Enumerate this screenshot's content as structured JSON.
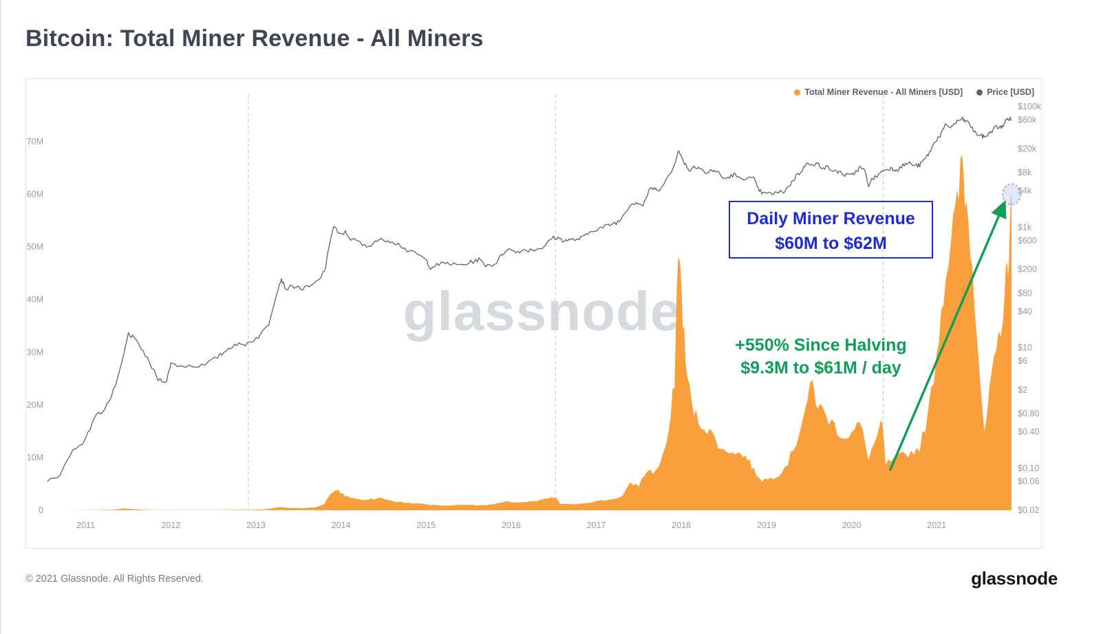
{
  "title": "Bitcoin: Total Miner Revenue - All Miners",
  "watermark": "glassnode",
  "legend": {
    "revenue": "Total Miner Revenue - All Miners [USD]",
    "price": "Price [USD]"
  },
  "annotations": {
    "blue": {
      "line1": "Daily Miner Revenue",
      "line2": "$60M to $62M"
    },
    "green": {
      "line1": "+550% Since Halving",
      "line2": "$9.3M to $61M / day"
    },
    "arrow": {
      "from_year": 2020.45,
      "from_value_m": 7.5,
      "to_year": 2021.8,
      "to_value_m": 58.5
    },
    "target_marker": {
      "year": 2021.88,
      "value_m": 60
    }
  },
  "footer": {
    "copyright": "© 2021 Glassnode. All Rights Reserved.",
    "logo": "glassnode"
  },
  "colors": {
    "orange": "#f9a03c",
    "price_gray": "#5d636b",
    "green": "#0e9f57",
    "blue": "#1d2bd6",
    "halving_line": "#c0c5cb",
    "axis_text": "#969ca5"
  },
  "chart_data": {
    "type": "area+line",
    "title": "Bitcoin: Total Miner Revenue - All Miners",
    "x_domain": [
      2010.55,
      2021.88
    ],
    "x_ticks": [
      2011,
      2012,
      2013,
      2014,
      2015,
      2016,
      2017,
      2018,
      2019,
      2020,
      2021
    ],
    "halving_lines": [
      2012.91,
      2016.52,
      2020.37
    ],
    "grid": "off",
    "legend_position": "top-right",
    "left_axis": {
      "label": "Total Miner Revenue - All Miners",
      "unit": "USD million per day",
      "scale": "linear",
      "max_m": 79,
      "ticks": [
        {
          "v": 0,
          "label": "0"
        },
        {
          "v": 10,
          "label": "10M"
        },
        {
          "v": 20,
          "label": "20M"
        },
        {
          "v": 30,
          "label": "30M"
        },
        {
          "v": 40,
          "label": "40M"
        },
        {
          "v": 50,
          "label": "50M"
        },
        {
          "v": 60,
          "label": "60M"
        },
        {
          "v": 70,
          "label": "70M"
        }
      ]
    },
    "right_axis": {
      "label": "Price",
      "unit": "USD",
      "scale": "log",
      "min": 0.02,
      "max": 161000,
      "ticks": [
        {
          "v": 100000,
          "label": "$100k"
        },
        {
          "v": 60000,
          "label": "$60k"
        },
        {
          "v": 20000,
          "label": "$20k"
        },
        {
          "v": 8000,
          "label": "$8k"
        },
        {
          "v": 4000,
          "label": "$4k"
        },
        {
          "v": 1000,
          "label": "$1k"
        },
        {
          "v": 600,
          "label": "$600"
        },
        {
          "v": 200,
          "label": "$200"
        },
        {
          "v": 80,
          "label": "$80"
        },
        {
          "v": 40,
          "label": "$40"
        },
        {
          "v": 10,
          "label": "$10"
        },
        {
          "v": 6,
          "label": "$6"
        },
        {
          "v": 2,
          "label": "$2"
        },
        {
          "v": 0.8,
          "label": "$0.80"
        },
        {
          "v": 0.4,
          "label": "$0.40"
        },
        {
          "v": 0.1,
          "label": "$0.10"
        },
        {
          "v": 0.06,
          "label": "$0.06"
        },
        {
          "v": 0.02,
          "label": "$0.02"
        }
      ]
    },
    "series": [
      {
        "name": "Total Miner Revenue - All Miners [USD]",
        "type": "area",
        "axis": "left",
        "color": "#f9a03c",
        "unit": "$M per day",
        "points": [
          [
            2010.55,
            0.003
          ],
          [
            2010.75,
            0.006
          ],
          [
            2011.0,
            0.02
          ],
          [
            2011.17,
            0.05
          ],
          [
            2011.33,
            0.1
          ],
          [
            2011.45,
            0.35
          ],
          [
            2011.55,
            0.2
          ],
          [
            2011.7,
            0.07
          ],
          [
            2011.9,
            0.03
          ],
          [
            2012.2,
            0.05
          ],
          [
            2012.5,
            0.05
          ],
          [
            2012.75,
            0.07
          ],
          [
            2012.91,
            0.08
          ],
          [
            2013.0,
            0.1
          ],
          [
            2013.1,
            0.18
          ],
          [
            2013.2,
            0.4
          ],
          [
            2013.28,
            0.6
          ],
          [
            2013.4,
            0.42
          ],
          [
            2013.55,
            0.38
          ],
          [
            2013.7,
            0.55
          ],
          [
            2013.8,
            1.2
          ],
          [
            2013.88,
            3.2
          ],
          [
            2013.95,
            4.0
          ],
          [
            2014.0,
            3.4
          ],
          [
            2014.05,
            2.6
          ],
          [
            2014.15,
            2.3
          ],
          [
            2014.25,
            1.9
          ],
          [
            2014.35,
            2.2
          ],
          [
            2014.45,
            2.3
          ],
          [
            2014.55,
            2.0
          ],
          [
            2014.65,
            1.6
          ],
          [
            2014.8,
            1.4
          ],
          [
            2014.95,
            1.2
          ],
          [
            2015.1,
            0.95
          ],
          [
            2015.3,
            0.9
          ],
          [
            2015.5,
            1.1
          ],
          [
            2015.65,
            0.9
          ],
          [
            2015.8,
            1.15
          ],
          [
            2015.95,
            1.6
          ],
          [
            2016.1,
            1.5
          ],
          [
            2016.3,
            1.7
          ],
          [
            2016.45,
            2.3
          ],
          [
            2016.52,
            2.4
          ],
          [
            2016.58,
            1.2
          ],
          [
            2016.7,
            1.1
          ],
          [
            2016.85,
            1.35
          ],
          [
            2017.0,
            1.7
          ],
          [
            2017.15,
            2.0
          ],
          [
            2017.3,
            2.6
          ],
          [
            2017.4,
            5.0
          ],
          [
            2017.5,
            4.8
          ],
          [
            2017.6,
            7.6
          ],
          [
            2017.7,
            7.2
          ],
          [
            2017.78,
            10.5
          ],
          [
            2017.85,
            14
          ],
          [
            2017.92,
            25
          ],
          [
            2017.96,
            50
          ],
          [
            2018.0,
            42
          ],
          [
            2018.05,
            28
          ],
          [
            2018.12,
            20
          ],
          [
            2018.2,
            17
          ],
          [
            2018.3,
            15.5
          ],
          [
            2018.4,
            13.5
          ],
          [
            2018.5,
            11
          ],
          [
            2018.6,
            11.5
          ],
          [
            2018.7,
            10.5
          ],
          [
            2018.78,
            10
          ],
          [
            2018.85,
            7.5
          ],
          [
            2018.95,
            5.8
          ],
          [
            2019.05,
            6
          ],
          [
            2019.15,
            7
          ],
          [
            2019.25,
            9
          ],
          [
            2019.35,
            13
          ],
          [
            2019.45,
            19
          ],
          [
            2019.54,
            24
          ],
          [
            2019.6,
            20
          ],
          [
            2019.7,
            18
          ],
          [
            2019.8,
            16
          ],
          [
            2019.9,
            14
          ],
          [
            2020.0,
            14.5
          ],
          [
            2020.1,
            16.5
          ],
          [
            2020.2,
            10
          ],
          [
            2020.3,
            14
          ],
          [
            2020.36,
            16.5
          ],
          [
            2020.4,
            8.8
          ],
          [
            2020.5,
            9.5
          ],
          [
            2020.6,
            10.5
          ],
          [
            2020.7,
            11
          ],
          [
            2020.8,
            12
          ],
          [
            2020.9,
            18
          ],
          [
            2021.0,
            30
          ],
          [
            2021.08,
            42
          ],
          [
            2021.17,
            52
          ],
          [
            2021.24,
            57
          ],
          [
            2021.3,
            67
          ],
          [
            2021.35,
            58
          ],
          [
            2021.42,
            48
          ],
          [
            2021.5,
            28
          ],
          [
            2021.56,
            14
          ],
          [
            2021.62,
            22
          ],
          [
            2021.7,
            30
          ],
          [
            2021.78,
            38
          ],
          [
            2021.83,
            46
          ],
          [
            2021.86,
            52
          ],
          [
            2021.88,
            60
          ]
        ]
      },
      {
        "name": "Price [USD]",
        "type": "line",
        "axis": "right",
        "color": "#5d636b",
        "unit": "USD",
        "points": [
          [
            2010.55,
            0.06
          ],
          [
            2010.7,
            0.08
          ],
          [
            2010.85,
            0.2
          ],
          [
            2011.0,
            0.3
          ],
          [
            2011.1,
            0.7
          ],
          [
            2011.2,
            0.9
          ],
          [
            2011.3,
            1.5
          ],
          [
            2011.4,
            4
          ],
          [
            2011.45,
            8
          ],
          [
            2011.5,
            17
          ],
          [
            2011.55,
            15
          ],
          [
            2011.65,
            10
          ],
          [
            2011.75,
            5.5
          ],
          [
            2011.85,
            3
          ],
          [
            2011.95,
            2.8
          ],
          [
            2012.0,
            5.5
          ],
          [
            2012.1,
            5
          ],
          [
            2012.25,
            5
          ],
          [
            2012.4,
            5.1
          ],
          [
            2012.55,
            7
          ],
          [
            2012.65,
            9
          ],
          [
            2012.75,
            11.5
          ],
          [
            2012.85,
            11
          ],
          [
            2012.95,
            13
          ],
          [
            2013.05,
            16
          ],
          [
            2013.15,
            25
          ],
          [
            2013.25,
            90
          ],
          [
            2013.3,
            140
          ],
          [
            2013.35,
            95
          ],
          [
            2013.45,
            105
          ],
          [
            2013.55,
            95
          ],
          [
            2013.65,
            105
          ],
          [
            2013.75,
            135
          ],
          [
            2013.82,
            220
          ],
          [
            2013.88,
            700
          ],
          [
            2013.92,
            1050
          ],
          [
            2013.97,
            750
          ],
          [
            2014.05,
            820
          ],
          [
            2014.12,
            630
          ],
          [
            2014.2,
            580
          ],
          [
            2014.3,
            460
          ],
          [
            2014.4,
            590
          ],
          [
            2014.5,
            620
          ],
          [
            2014.6,
            590
          ],
          [
            2014.7,
            500
          ],
          [
            2014.8,
            390
          ],
          [
            2014.9,
            360
          ],
          [
            2015.0,
            280
          ],
          [
            2015.05,
            215
          ],
          [
            2015.15,
            240
          ],
          [
            2015.25,
            255
          ],
          [
            2015.35,
            235
          ],
          [
            2015.45,
            240
          ],
          [
            2015.55,
            270
          ],
          [
            2015.62,
            290
          ],
          [
            2015.7,
            235
          ],
          [
            2015.8,
            240
          ],
          [
            2015.88,
            330
          ],
          [
            2015.95,
            440
          ],
          [
            2016.05,
            385
          ],
          [
            2016.15,
            420
          ],
          [
            2016.25,
            420
          ],
          [
            2016.35,
            450
          ],
          [
            2016.42,
            530
          ],
          [
            2016.48,
            670
          ],
          [
            2016.55,
            660
          ],
          [
            2016.62,
            600
          ],
          [
            2016.7,
            610
          ],
          [
            2016.8,
            640
          ],
          [
            2016.88,
            730
          ],
          [
            2016.96,
            900
          ],
          [
            2017.04,
            950
          ],
          [
            2017.12,
            1050
          ],
          [
            2017.2,
            1150
          ],
          [
            2017.27,
            1250
          ],
          [
            2017.35,
            1900
          ],
          [
            2017.42,
            2500
          ],
          [
            2017.48,
            2600
          ],
          [
            2017.55,
            2300
          ],
          [
            2017.62,
            4100
          ],
          [
            2017.68,
            4500
          ],
          [
            2017.72,
            3900
          ],
          [
            2017.8,
            5700
          ],
          [
            2017.87,
            7500
          ],
          [
            2017.92,
            11000
          ],
          [
            2017.96,
            19000
          ],
          [
            2018.0,
            14500
          ],
          [
            2018.05,
            11000
          ],
          [
            2018.1,
            8500
          ],
          [
            2018.15,
            10500
          ],
          [
            2018.22,
            9800
          ],
          [
            2018.3,
            7500
          ],
          [
            2018.35,
            9000
          ],
          [
            2018.42,
            8400
          ],
          [
            2018.5,
            6300
          ],
          [
            2018.55,
            6700
          ],
          [
            2018.62,
            7500
          ],
          [
            2018.68,
            6400
          ],
          [
            2018.75,
            6600
          ],
          [
            2018.85,
            6400
          ],
          [
            2018.9,
            4300
          ],
          [
            2018.96,
            3600
          ],
          [
            2019.05,
            3600
          ],
          [
            2019.12,
            3700
          ],
          [
            2019.2,
            3900
          ],
          [
            2019.28,
            5100
          ],
          [
            2019.35,
            7200
          ],
          [
            2019.42,
            8700
          ],
          [
            2019.48,
            12500
          ],
          [
            2019.55,
            10200
          ],
          [
            2019.6,
            11500
          ],
          [
            2019.65,
            10000
          ],
          [
            2019.72,
            9800
          ],
          [
            2019.8,
            8300
          ],
          [
            2019.85,
            8500
          ],
          [
            2019.92,
            7300
          ],
          [
            2020.0,
            7200
          ],
          [
            2020.05,
            8400
          ],
          [
            2020.1,
            9800
          ],
          [
            2020.15,
            8800
          ],
          [
            2020.2,
            5000
          ],
          [
            2020.25,
            6400
          ],
          [
            2020.3,
            7100
          ],
          [
            2020.37,
            8800
          ],
          [
            2020.45,
            9500
          ],
          [
            2020.5,
            9200
          ],
          [
            2020.55,
            9150
          ],
          [
            2020.62,
            11000
          ],
          [
            2020.68,
            11600
          ],
          [
            2020.75,
            10400
          ],
          [
            2020.8,
            10700
          ],
          [
            2020.85,
            13000
          ],
          [
            2020.9,
            16000
          ],
          [
            2020.96,
            23000
          ],
          [
            2021.0,
            29000
          ],
          [
            2021.04,
            33000
          ],
          [
            2021.1,
            48000
          ],
          [
            2021.15,
            46000
          ],
          [
            2021.2,
            50000
          ],
          [
            2021.25,
            58000
          ],
          [
            2021.3,
            63000
          ],
          [
            2021.33,
            58000
          ],
          [
            2021.38,
            54000
          ],
          [
            2021.42,
            43000
          ],
          [
            2021.46,
            36000
          ],
          [
            2021.52,
            33000
          ],
          [
            2021.56,
            31500
          ],
          [
            2021.6,
            34000
          ],
          [
            2021.65,
            40000
          ],
          [
            2021.7,
            47000
          ],
          [
            2021.74,
            44000
          ],
          [
            2021.78,
            49000
          ],
          [
            2021.82,
            61000
          ],
          [
            2021.85,
            63000
          ],
          [
            2021.88,
            61000
          ]
        ]
      }
    ]
  }
}
